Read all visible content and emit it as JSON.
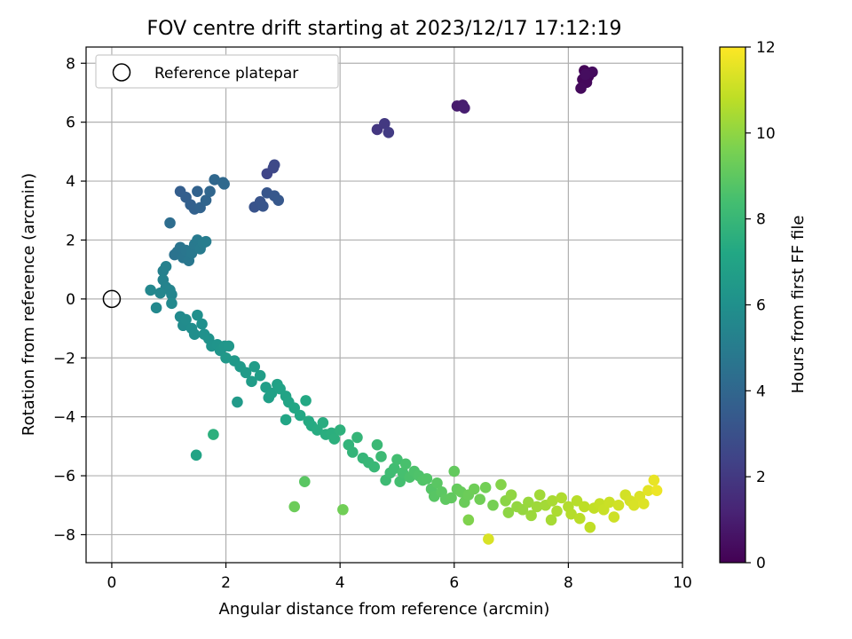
{
  "chart_data": {
    "type": "scatter",
    "title": "FOV centre drift starting at 2023/12/17 17:12:19",
    "xlabel": "Angular distance from reference (arcmin)",
    "ylabel": "Rotation from reference (arcmin)",
    "xlim": [
      -0.45,
      10
    ],
    "ylim": [
      -8.95,
      8.55
    ],
    "xticks": [
      0,
      2,
      4,
      6,
      8,
      10
    ],
    "yticks": [
      -8,
      -6,
      -4,
      -2,
      0,
      2,
      4,
      6,
      8
    ],
    "grid": true,
    "legend": {
      "placement": "upper-left",
      "entries": [
        "Reference platepar"
      ]
    },
    "colorbar": {
      "label": "Hours from first FF file",
      "range": [
        0,
        12
      ],
      "ticks": [
        0,
        2,
        4,
        6,
        8,
        10,
        12
      ],
      "colormap": "viridis"
    },
    "reference_point": {
      "x": 0,
      "y": 0
    },
    "points": [
      [
        8.28,
        7.75,
        0.1
      ],
      [
        8.35,
        7.55,
        0.15
      ],
      [
        8.25,
        7.45,
        0.2
      ],
      [
        8.32,
        7.35,
        0.25
      ],
      [
        8.22,
        7.15,
        0.3
      ],
      [
        8.42,
        7.7,
        0.35
      ],
      [
        8.3,
        7.62,
        0.4
      ],
      [
        6.05,
        6.55,
        0.9
      ],
      [
        6.15,
        6.58,
        0.95
      ],
      [
        6.18,
        6.48,
        1.0
      ],
      [
        4.65,
        5.75,
        1.9
      ],
      [
        4.78,
        5.95,
        2.0
      ],
      [
        4.85,
        5.65,
        2.1
      ],
      [
        2.72,
        4.25,
        2.5
      ],
      [
        2.83,
        4.45,
        2.6
      ],
      [
        2.85,
        4.55,
        2.65
      ],
      [
        2.5,
        3.12,
        3.1
      ],
      [
        2.6,
        3.3,
        3.15
      ],
      [
        2.65,
        3.15,
        3.2
      ],
      [
        2.72,
        3.6,
        3.25
      ],
      [
        2.85,
        3.5,
        3.3
      ],
      [
        2.92,
        3.35,
        3.35
      ],
      [
        1.2,
        3.65,
        3.6
      ],
      [
        1.3,
        3.45,
        3.65
      ],
      [
        1.38,
        3.2,
        3.7
      ],
      [
        1.45,
        3.05,
        3.75
      ],
      [
        1.5,
        3.65,
        3.8
      ],
      [
        1.55,
        3.1,
        3.85
      ],
      [
        1.65,
        3.35,
        3.9
      ],
      [
        1.72,
        3.65,
        3.95
      ],
      [
        1.8,
        4.05,
        4.0
      ],
      [
        1.95,
        3.95,
        4.05
      ],
      [
        1.97,
        3.9,
        4.1
      ],
      [
        1.02,
        2.58,
        4.3
      ],
      [
        1.1,
        1.5,
        4.5
      ],
      [
        1.15,
        1.6,
        4.55
      ],
      [
        1.2,
        1.75,
        4.6
      ],
      [
        1.25,
        1.4,
        4.65
      ],
      [
        1.3,
        1.65,
        4.7
      ],
      [
        1.35,
        1.3,
        4.75
      ],
      [
        1.4,
        1.55,
        4.8
      ],
      [
        1.45,
        1.85,
        4.85
      ],
      [
        1.5,
        2.0,
        4.9
      ],
      [
        1.55,
        1.7,
        4.95
      ],
      [
        1.6,
        1.9,
        5.0
      ],
      [
        1.65,
        1.95,
        5.05
      ],
      [
        0.9,
        0.95,
        5.2
      ],
      [
        0.95,
        1.1,
        5.25
      ],
      [
        0.9,
        0.65,
        5.3
      ],
      [
        0.95,
        0.4,
        5.35
      ],
      [
        1.02,
        0.3,
        5.4
      ],
      [
        1.05,
        0.15,
        5.45
      ],
      [
        0.85,
        0.2,
        5.5
      ],
      [
        0.68,
        0.3,
        5.55
      ],
      [
        0.78,
        -0.3,
        5.6
      ],
      [
        1.05,
        -0.15,
        5.65
      ],
      [
        1.2,
        -0.6,
        5.7
      ],
      [
        1.25,
        -0.9,
        5.75
      ],
      [
        1.3,
        -0.7,
        5.8
      ],
      [
        1.4,
        -1.0,
        5.85
      ],
      [
        1.45,
        -1.2,
        5.9
      ],
      [
        1.5,
        -0.55,
        5.95
      ],
      [
        1.58,
        -0.85,
        6.0
      ],
      [
        1.62,
        -1.2,
        6.05
      ],
      [
        1.7,
        -1.35,
        6.1
      ],
      [
        1.75,
        -1.6,
        6.15
      ],
      [
        1.85,
        -1.55,
        6.2
      ],
      [
        1.9,
        -1.75,
        6.25
      ],
      [
        1.98,
        -1.6,
        6.3
      ],
      [
        2.05,
        -1.6,
        6.35
      ],
      [
        2.0,
        -2.0,
        6.4
      ],
      [
        2.15,
        -2.1,
        6.45
      ],
      [
        2.25,
        -2.3,
        6.5
      ],
      [
        2.35,
        -2.5,
        6.55
      ],
      [
        2.45,
        -2.8,
        6.6
      ],
      [
        2.5,
        -2.3,
        6.65
      ],
      [
        2.6,
        -2.6,
        6.7
      ],
      [
        2.7,
        -3.0,
        6.75
      ],
      [
        2.75,
        -3.35,
        6.8
      ],
      [
        2.8,
        -3.2,
        6.85
      ],
      [
        2.9,
        -2.9,
        6.9
      ],
      [
        2.95,
        -3.05,
        6.95
      ],
      [
        3.05,
        -3.3,
        7.0
      ],
      [
        3.1,
        -3.5,
        7.05
      ],
      [
        3.05,
        -4.1,
        7.1
      ],
      [
        3.2,
        -3.7,
        7.15
      ],
      [
        3.3,
        -3.95,
        7.2
      ],
      [
        3.4,
        -3.45,
        7.25
      ],
      [
        3.45,
        -4.15,
        7.3
      ],
      [
        3.5,
        -4.3,
        7.35
      ],
      [
        3.6,
        -4.45,
        7.4
      ],
      [
        3.7,
        -4.2,
        7.45
      ],
      [
        3.75,
        -4.6,
        7.5
      ],
      [
        3.85,
        -4.55,
        7.55
      ],
      [
        3.9,
        -4.75,
        7.6
      ],
      [
        4.0,
        -4.45,
        7.65
      ],
      [
        2.2,
        -3.5,
        6.5
      ],
      [
        1.48,
        -5.3,
        7.0
      ],
      [
        1.78,
        -4.6,
        7.6
      ],
      [
        4.15,
        -4.95,
        7.8
      ],
      [
        4.22,
        -5.2,
        7.85
      ],
      [
        4.3,
        -4.7,
        7.9
      ],
      [
        4.4,
        -5.4,
        7.95
      ],
      [
        4.5,
        -5.55,
        8.0
      ],
      [
        4.6,
        -5.7,
        8.05
      ],
      [
        4.65,
        -4.95,
        8.1
      ],
      [
        4.72,
        -5.35,
        8.15
      ],
      [
        4.8,
        -6.15,
        8.2
      ],
      [
        4.88,
        -5.9,
        8.25
      ],
      [
        4.95,
        -5.75,
        8.3
      ],
      [
        5.0,
        -5.45,
        8.35
      ],
      [
        5.05,
        -6.2,
        8.4
      ],
      [
        5.1,
        -5.9,
        8.45
      ],
      [
        5.15,
        -5.6,
        8.5
      ],
      [
        5.22,
        -6.05,
        8.55
      ],
      [
        5.3,
        -5.85,
        8.6
      ],
      [
        5.38,
        -6.0,
        8.65
      ],
      [
        5.45,
        -6.15,
        8.7
      ],
      [
        5.52,
        -6.1,
        8.75
      ],
      [
        5.6,
        -6.45,
        8.8
      ],
      [
        5.65,
        -6.7,
        8.85
      ],
      [
        5.7,
        -6.25,
        8.9
      ],
      [
        5.78,
        -6.55,
        8.95
      ],
      [
        5.85,
        -6.8,
        9.0
      ],
      [
        5.95,
        -6.75,
        9.05
      ],
      [
        6.0,
        -5.85,
        9.1
      ],
      [
        6.05,
        -6.45,
        9.15
      ],
      [
        6.12,
        -6.55,
        9.2
      ],
      [
        6.18,
        -6.9,
        9.25
      ],
      [
        6.25,
        -6.65,
        9.3
      ],
      [
        6.35,
        -6.45,
        9.35
      ],
      [
        6.45,
        -6.8,
        9.4
      ],
      [
        6.55,
        -6.4,
        9.45
      ],
      [
        6.68,
        -7.0,
        9.5
      ],
      [
        3.38,
        -6.2,
        8.9
      ],
      [
        3.2,
        -7.05,
        9.3
      ],
      [
        4.05,
        -7.15,
        9.4
      ],
      [
        6.25,
        -7.5,
        9.7
      ],
      [
        6.82,
        -6.3,
        9.8
      ],
      [
        6.6,
        -8.15,
        11.3
      ],
      [
        6.9,
        -6.85,
        9.9
      ],
      [
        6.95,
        -7.25,
        9.95
      ],
      [
        7.0,
        -6.65,
        10.0
      ],
      [
        7.1,
        -7.05,
        10.05
      ],
      [
        7.2,
        -7.15,
        10.1
      ],
      [
        7.3,
        -6.9,
        10.15
      ],
      [
        7.35,
        -7.35,
        10.2
      ],
      [
        7.45,
        -7.05,
        10.25
      ],
      [
        7.5,
        -6.65,
        10.3
      ],
      [
        7.6,
        -7.0,
        10.35
      ],
      [
        7.7,
        -7.5,
        10.4
      ],
      [
        7.72,
        -6.85,
        10.45
      ],
      [
        7.8,
        -7.2,
        10.5
      ],
      [
        7.88,
        -6.75,
        10.55
      ],
      [
        8.0,
        -7.05,
        10.6
      ],
      [
        8.05,
        -7.3,
        10.65
      ],
      [
        8.15,
        -6.85,
        10.7
      ],
      [
        8.2,
        -7.45,
        10.75
      ],
      [
        8.28,
        -7.05,
        10.8
      ],
      [
        8.38,
        -7.75,
        10.85
      ],
      [
        8.45,
        -7.1,
        10.9
      ],
      [
        8.55,
        -6.95,
        10.95
      ],
      [
        8.62,
        -7.15,
        11.0
      ],
      [
        8.72,
        -6.9,
        11.05
      ],
      [
        8.8,
        -7.4,
        11.1
      ],
      [
        8.88,
        -7.0,
        11.15
      ],
      [
        9.0,
        -6.65,
        11.2
      ],
      [
        9.08,
        -6.85,
        11.25
      ],
      [
        9.15,
        -7.0,
        11.3
      ],
      [
        9.25,
        -6.7,
        11.35
      ],
      [
        9.32,
        -6.95,
        11.4
      ],
      [
        9.4,
        -6.5,
        11.5
      ],
      [
        9.5,
        -6.15,
        11.6
      ],
      [
        9.55,
        -6.5,
        11.7
      ]
    ]
  }
}
